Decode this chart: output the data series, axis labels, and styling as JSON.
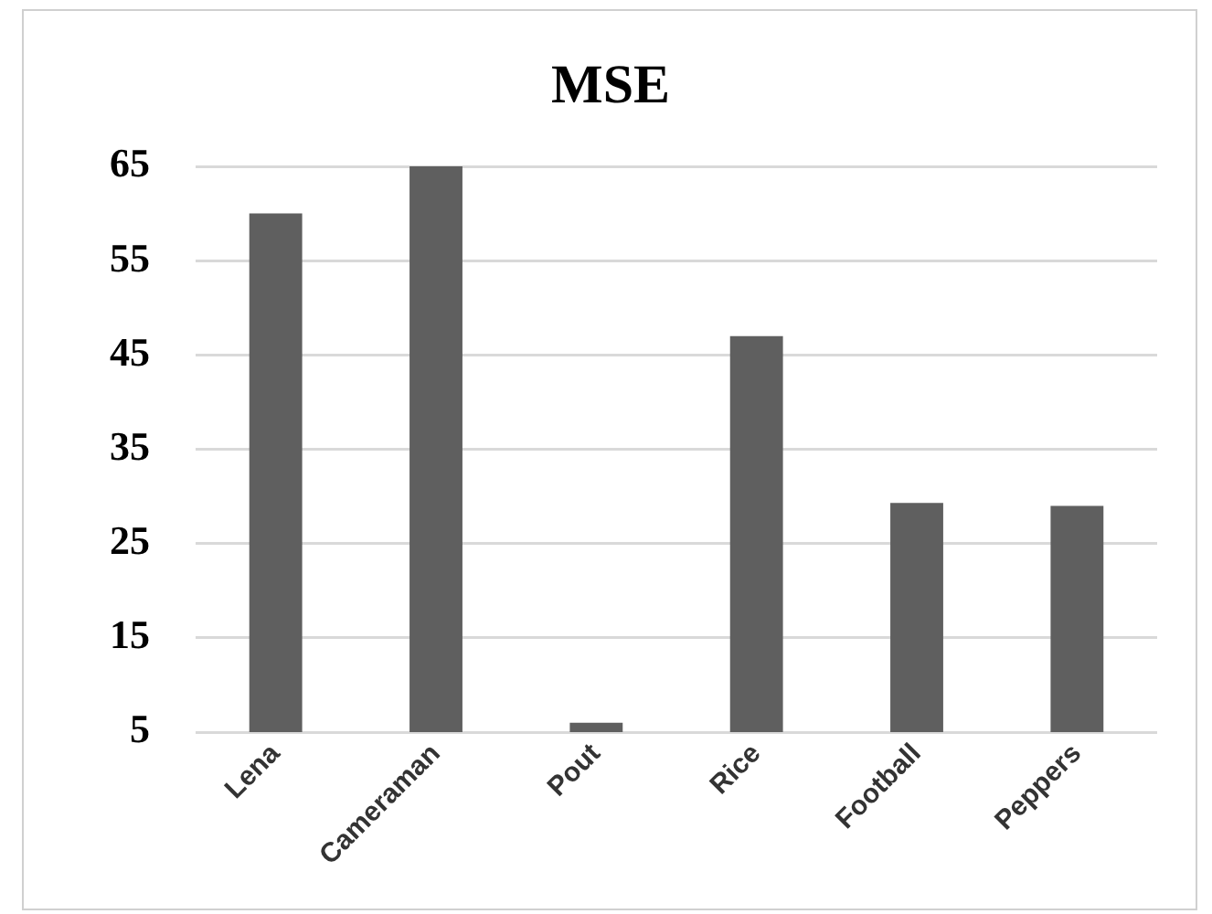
{
  "chart_data": {
    "type": "bar",
    "title": "MSE",
    "categories": [
      "Lena",
      "Cameraman",
      "Pout",
      "Rice",
      "Football",
      "Peppers"
    ],
    "values": [
      60,
      65,
      6,
      47,
      29.3,
      29
    ],
    "color": "#5f5f5f",
    "ylim": [
      5,
      65
    ],
    "yticks": [
      5,
      15,
      25,
      35,
      45,
      55,
      65
    ],
    "grid": "y"
  }
}
